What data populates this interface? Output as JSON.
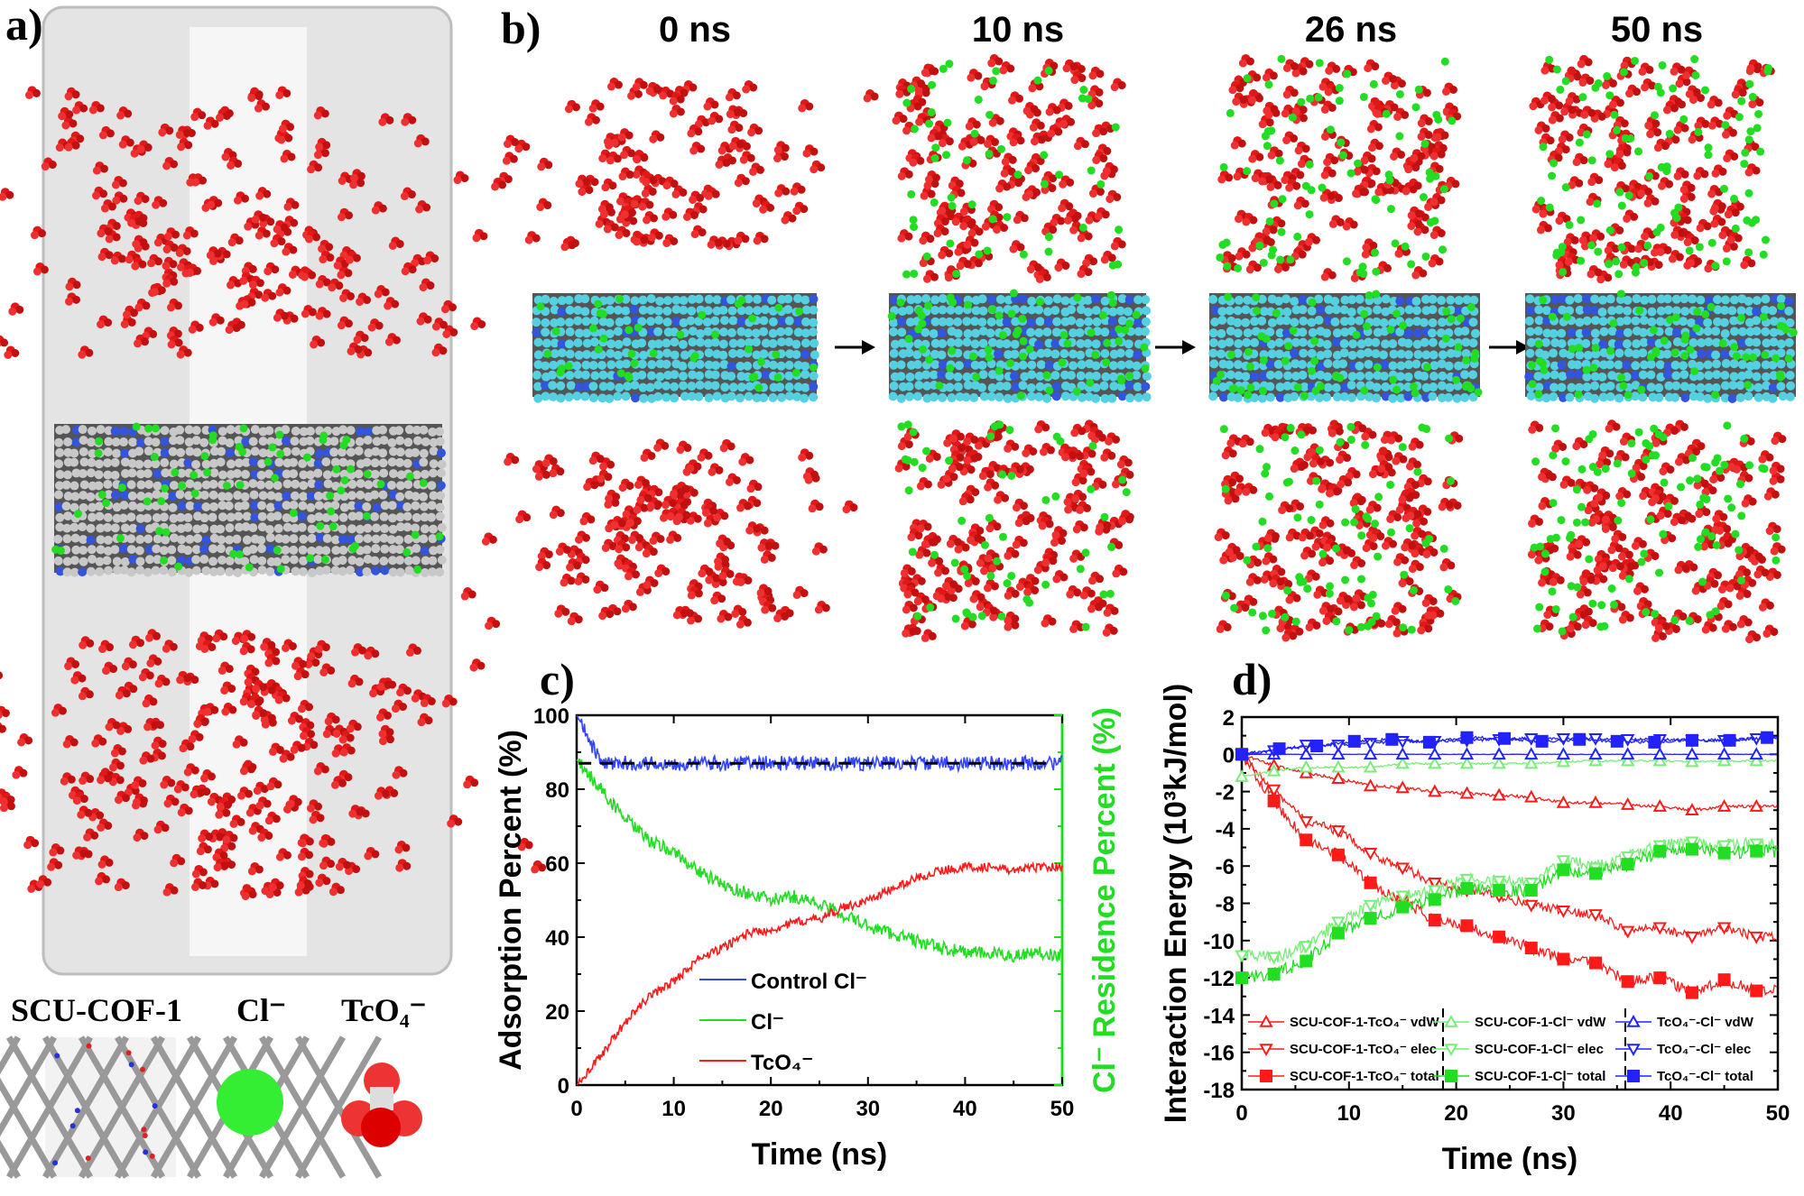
{
  "panels": {
    "a": {
      "label": "a)",
      "species": [
        "SCU-COF-1",
        "Cl⁻",
        "TcO₄⁻"
      ]
    },
    "b": {
      "label": "b)",
      "times": [
        "0 ns",
        "10 ns",
        "26 ns",
        "50 ns"
      ]
    },
    "c": {
      "label": "c)"
    },
    "d": {
      "label": "d)"
    }
  },
  "colors": {
    "tco4": "#ff1a1a",
    "cl": "#22dd22",
    "control": "#3344ff",
    "cof": "#c8c8c8",
    "cof_cyan": "#55d0e0"
  },
  "chart_data": [
    {
      "type": "line",
      "panel": "c",
      "xlabel": "Time (ns)",
      "ylabel": "Adsorption Percent  (%)",
      "ylabel_right": "Cl⁻ Residence Percent  (%)",
      "xlim": [
        0,
        50
      ],
      "ylim": [
        0,
        100
      ],
      "xticks": [
        0,
        10,
        20,
        30,
        40,
        50
      ],
      "yticks": [
        0,
        20,
        40,
        60,
        80,
        100
      ],
      "legend_position": "bottom-center",
      "reference_line": {
        "y": 87,
        "style": "dashed",
        "color": "#000000"
      },
      "x": [
        0,
        2.5,
        5,
        7.5,
        10,
        12.5,
        15,
        17.5,
        20,
        22.5,
        25,
        27.5,
        30,
        32.5,
        35,
        37.5,
        40,
        42.5,
        45,
        47.5,
        50
      ],
      "series": [
        {
          "name": "Control  Cl⁻",
          "color": "#3344ff",
          "values": [
            100,
            87,
            87,
            87,
            87,
            87,
            87,
            87,
            87,
            87,
            87,
            87,
            87,
            87,
            87,
            87,
            87,
            87,
            87,
            87,
            87
          ]
        },
        {
          "name": "Cl⁻",
          "color": "#22dd22",
          "axis": "right",
          "values": [
            88,
            80,
            72,
            66,
            63,
            58,
            54,
            52,
            50,
            51,
            49,
            46,
            43,
            41,
            39,
            37,
            36,
            35.5,
            35,
            36,
            35
          ]
        },
        {
          "name": "TcO₄⁻",
          "color": "#ff1a1a",
          "values": [
            0,
            8,
            17,
            24,
            28,
            34,
            37,
            41,
            42,
            44,
            45,
            48,
            50,
            53,
            56,
            58,
            59,
            59,
            58,
            59,
            59
          ]
        }
      ]
    },
    {
      "type": "line",
      "panel": "d",
      "xlabel": "Time (ns)",
      "ylabel": "Interaction Energy (10³kJ/mol)",
      "xlim": [
        0,
        50
      ],
      "ylim": [
        -18,
        2
      ],
      "xticks": [
        0,
        10,
        20,
        30,
        40,
        50
      ],
      "yticks": [
        -18,
        -16,
        -14,
        -12,
        -10,
        -8,
        -6,
        -4,
        -2,
        0,
        2
      ],
      "legend_position": "bottom",
      "x": [
        0,
        3,
        6,
        9,
        12,
        15,
        18,
        21,
        24,
        27,
        30,
        33,
        36,
        39,
        42,
        45,
        48
      ],
      "series": [
        {
          "name": "SCU-COF-1-TcO₄⁻ vdW",
          "color": "#ff1a1a",
          "marker": "triangle-up",
          "values": [
            0,
            -0.6,
            -1,
            -1.3,
            -1.7,
            -1.8,
            -2,
            -2.1,
            -2.2,
            -2.3,
            -2.6,
            -2.6,
            -2.7,
            -2.8,
            -3,
            -2.8,
            -2.8
          ]
        },
        {
          "name": "SCU-COF-1-TcO₄⁻ elec",
          "color": "#ff1a1a",
          "marker": "triangle-down",
          "values": [
            0,
            -1.9,
            -3.6,
            -4.1,
            -5.3,
            -6.1,
            -6.9,
            -7.3,
            -7.6,
            -8.1,
            -8.4,
            -8.6,
            -9.5,
            -9.3,
            -9.8,
            -9.3,
            -9.8
          ]
        },
        {
          "name": "SCU-COF-1-TcO₄⁻ total",
          "color": "#ff1a1a",
          "marker": "square",
          "values": [
            0,
            -2.5,
            -4.6,
            -5.4,
            -6.9,
            -7.9,
            -8.9,
            -9.2,
            -9.8,
            -10.4,
            -11,
            -11.2,
            -12.2,
            -12,
            -12.8,
            -12.1,
            -12.7
          ]
        },
        {
          "name": "SCU-COF-1-Cl⁻ vdW",
          "color": "#77ee77",
          "marker": "triangle-up",
          "values": [
            -1.2,
            -0.9,
            -0.7,
            -0.7,
            -0.7,
            -0.5,
            -0.5,
            -0.5,
            -0.5,
            -0.5,
            -0.4,
            -0.35,
            -0.35,
            -0.35,
            -0.4,
            -0.35,
            -0.35
          ]
        },
        {
          "name": "SCU-COF-1-Cl⁻ elec",
          "color": "#77ee77",
          "marker": "triangle-down",
          "values": [
            -10.8,
            -10.9,
            -10.3,
            -9,
            -8.1,
            -7.6,
            -7.3,
            -6.7,
            -6.8,
            -6.9,
            -5.7,
            -6.1,
            -5.5,
            -4.9,
            -4.7,
            -4.9,
            -4.8
          ]
        },
        {
          "name": "SCU-COF-1-Cl⁻ total",
          "color": "#22dd22",
          "marker": "square",
          "values": [
            -12,
            -11.8,
            -11.1,
            -9.6,
            -8.8,
            -8.2,
            -7.8,
            -7.2,
            -7.3,
            -7.3,
            -6.2,
            -6.4,
            -5.9,
            -5.2,
            -5.1,
            -5.3,
            -5.2
          ]
        },
        {
          "name": "TcO₄⁻-Cl⁻ vdW",
          "color": "#2222ff",
          "marker": "triangle-up",
          "values": [
            0,
            0,
            0,
            0,
            0,
            0,
            0,
            0,
            0,
            0,
            0,
            0,
            0,
            0,
            0,
            0,
            0
          ]
        },
        {
          "name": "TcO₄⁻-Cl⁻ elec",
          "color": "#2222ff",
          "marker": "triangle-down",
          "values": [
            0,
            0.2,
            0.5,
            0.5,
            0.6,
            0.7,
            0.7,
            0.75,
            0.8,
            0.85,
            0.85,
            0.85,
            0.8,
            0.8,
            0.75,
            0.75,
            0.85
          ]
        },
        {
          "name": "TcO₄⁻-Cl⁻ total",
          "color": "#2222ff",
          "marker": "square",
          "x": [
            0,
            3.5,
            7,
            10.5,
            14,
            17.5,
            21,
            24.5,
            28,
            31.5,
            35,
            38.5,
            42,
            45.5,
            49
          ],
          "values": [
            0,
            0.3,
            0.45,
            0.7,
            0.8,
            0.65,
            0.9,
            0.85,
            0.7,
            0.8,
            0.7,
            0.65,
            0.75,
            0.75,
            0.9
          ]
        }
      ]
    }
  ]
}
